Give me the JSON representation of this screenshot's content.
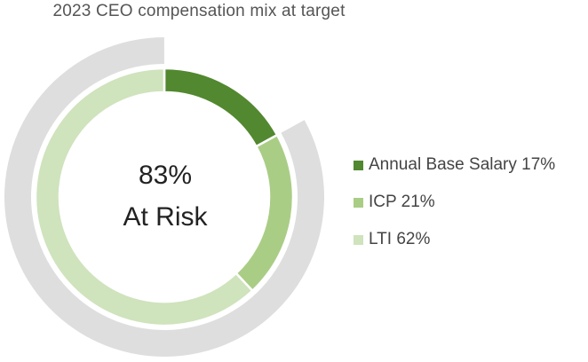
{
  "chart_data": {
    "type": "pie",
    "title": "2023 CEO compensation mix at target",
    "center": {
      "value": "83%",
      "label": "At Risk"
    },
    "outer_ring": {
      "name": "At Risk",
      "start_percent": 17,
      "end_percent": 100,
      "color": "#dededf"
    },
    "slices": [
      {
        "label": "Annual Base Salary",
        "value": 17,
        "display": "17%",
        "color": "#52882f"
      },
      {
        "label": "ICP",
        "value": 21,
        "display": "21%",
        "color": "#aacd86"
      },
      {
        "label": "LTI",
        "value": 62,
        "display": "62%",
        "color": "#cfe3bd"
      }
    ]
  }
}
